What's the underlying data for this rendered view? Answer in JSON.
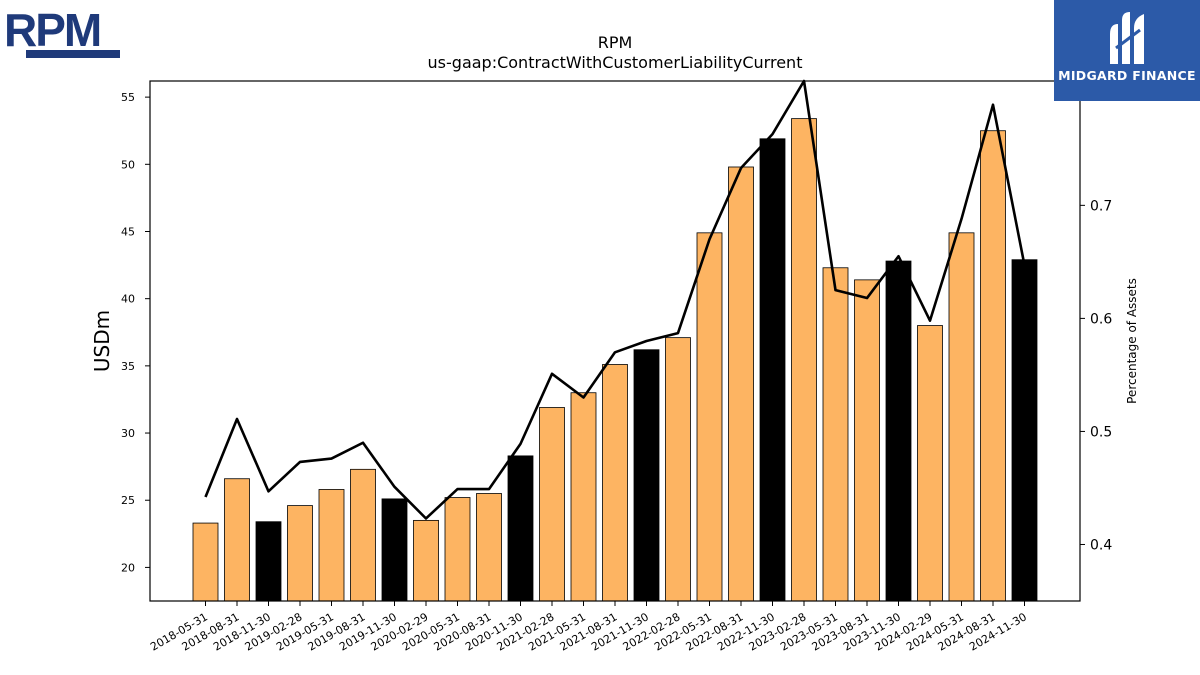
{
  "logos": {
    "left_text": "RPM",
    "right_text": "MIDGARD FINANCE"
  },
  "chart_data": {
    "type": "bar",
    "title": "RPM",
    "subtitle": "us-gaap:ContractWithCustomerLiabilityCurrent",
    "ylabel": "USDm",
    "y2label": "Percentage of Assets",
    "ylim": [
      17.5,
      56.2
    ],
    "y2lim": [
      0.35,
      0.81
    ],
    "yticks": [
      20,
      25,
      30,
      35,
      40,
      45,
      50,
      55
    ],
    "y2ticks": [
      0.4,
      0.5,
      0.6,
      0.7,
      0.8
    ],
    "colors": {
      "bar_default": "#fdb462",
      "bar_highlight": "#000000",
      "line": "#000000"
    },
    "categories": [
      "2018-05-31",
      "2018-08-31",
      "2018-11-30",
      "2019-02-28",
      "2019-05-31",
      "2019-08-31",
      "2019-11-30",
      "2020-02-29",
      "2020-05-31",
      "2020-08-31",
      "2020-11-30",
      "2021-02-28",
      "2021-05-31",
      "2021-08-31",
      "2021-11-30",
      "2022-02-28",
      "2022-05-31",
      "2022-08-31",
      "2022-11-30",
      "2023-02-28",
      "2023-05-31",
      "2023-08-31",
      "2023-11-30",
      "2024-02-29",
      "2024-05-31",
      "2024-08-31",
      "2024-11-30"
    ],
    "series": [
      {
        "kind": "bar",
        "values": [
          23.3,
          26.6,
          23.4,
          24.6,
          25.8,
          27.3,
          25.1,
          23.5,
          25.2,
          25.5,
          28.3,
          31.9,
          33.0,
          35.1,
          36.2,
          37.1,
          44.9,
          49.8,
          51.9,
          53.4,
          42.3,
          41.4,
          42.8,
          38.0,
          44.9,
          52.5,
          42.9
        ],
        "highlight": [
          false,
          false,
          true,
          false,
          false,
          false,
          true,
          false,
          false,
          false,
          true,
          false,
          false,
          false,
          true,
          false,
          false,
          false,
          true,
          false,
          false,
          false,
          true,
          false,
          false,
          false,
          true
        ]
      },
      {
        "kind": "line",
        "axis": "right",
        "values": [
          0.442,
          0.511,
          0.447,
          0.473,
          0.476,
          0.49,
          0.451,
          0.423,
          0.449,
          0.449,
          0.489,
          0.551,
          0.53,
          0.57,
          0.58,
          0.587,
          0.67,
          0.733,
          0.763,
          0.81,
          0.625,
          0.618,
          0.655,
          0.598,
          0.688,
          0.789,
          0.647
        ]
      }
    ]
  }
}
